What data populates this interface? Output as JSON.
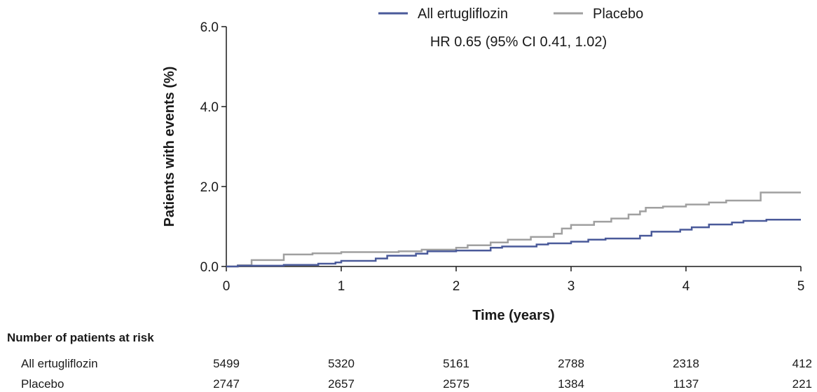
{
  "chart_data": {
    "type": "line",
    "step": true,
    "xlabel": "Time (years)",
    "ylabel": "Patients with events (%)",
    "xlim": [
      0,
      5
    ],
    "ylim": [
      0,
      6
    ],
    "xticks": [
      0,
      1,
      2,
      3,
      4,
      5
    ],
    "xtick_labels": [
      "0",
      "1",
      "2",
      "3",
      "4",
      "5"
    ],
    "yticks": [
      0,
      2,
      4,
      6
    ],
    "ytick_labels": [
      "0.0",
      "2.0",
      "4.0",
      "6.0"
    ],
    "grid": false,
    "legend_position": "top",
    "annotation": "HR 0.65 (95% CI 0.41, 1.02)",
    "series": [
      {
        "name": "All ertugliflozin",
        "color": "#4a5a9a",
        "points": [
          [
            0,
            0
          ],
          [
            0.1,
            0.02
          ],
          [
            0.5,
            0.04
          ],
          [
            0.8,
            0.07
          ],
          [
            0.95,
            0.1
          ],
          [
            1.0,
            0.14
          ],
          [
            1.3,
            0.2
          ],
          [
            1.4,
            0.27
          ],
          [
            1.65,
            0.32
          ],
          [
            1.75,
            0.38
          ],
          [
            2.0,
            0.4
          ],
          [
            2.3,
            0.47
          ],
          [
            2.4,
            0.5
          ],
          [
            2.7,
            0.55
          ],
          [
            2.8,
            0.58
          ],
          [
            3.0,
            0.62
          ],
          [
            3.15,
            0.67
          ],
          [
            3.3,
            0.7
          ],
          [
            3.6,
            0.77
          ],
          [
            3.7,
            0.87
          ],
          [
            3.95,
            0.92
          ],
          [
            4.05,
            0.98
          ],
          [
            4.2,
            1.05
          ],
          [
            4.4,
            1.1
          ],
          [
            4.5,
            1.14
          ],
          [
            4.7,
            1.17
          ],
          [
            5.0,
            1.17
          ]
        ]
      },
      {
        "name": "Placebo",
        "color": "#a0a0a0",
        "points": [
          [
            0,
            0
          ],
          [
            0.1,
            0.03
          ],
          [
            0.22,
            0.16
          ],
          [
            0.5,
            0.3
          ],
          [
            0.75,
            0.33
          ],
          [
            1.0,
            0.36
          ],
          [
            1.5,
            0.38
          ],
          [
            1.7,
            0.42
          ],
          [
            2.0,
            0.47
          ],
          [
            2.1,
            0.53
          ],
          [
            2.3,
            0.6
          ],
          [
            2.45,
            0.67
          ],
          [
            2.65,
            0.74
          ],
          [
            2.85,
            0.82
          ],
          [
            2.92,
            0.95
          ],
          [
            3.0,
            1.04
          ],
          [
            3.2,
            1.12
          ],
          [
            3.35,
            1.2
          ],
          [
            3.5,
            1.3
          ],
          [
            3.6,
            1.38
          ],
          [
            3.65,
            1.47
          ],
          [
            3.8,
            1.5
          ],
          [
            4.0,
            1.55
          ],
          [
            4.2,
            1.6
          ],
          [
            4.35,
            1.65
          ],
          [
            4.65,
            1.85
          ],
          [
            5.0,
            1.85
          ]
        ]
      }
    ],
    "risk_table": {
      "title": "Number of patients at risk",
      "rows": [
        {
          "label": "All ertugliflozin",
          "values": [
            "5499",
            "5320",
            "5161",
            "2788",
            "2318",
            "412"
          ]
        },
        {
          "label": "Placebo",
          "values": [
            "2747",
            "2657",
            "2575",
            "1384",
            "1137",
            "221"
          ]
        }
      ]
    }
  }
}
